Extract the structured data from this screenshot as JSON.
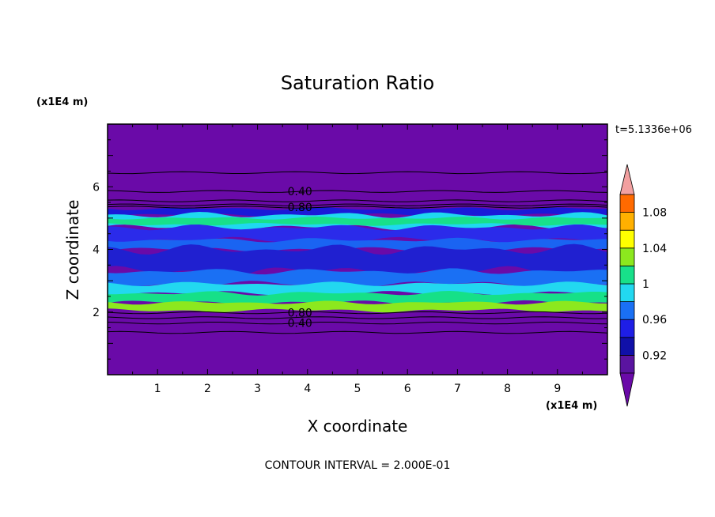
{
  "chart_data": {
    "type": "heatmap",
    "title": "Saturation Ratio",
    "xlabel": "X coordinate",
    "ylabel": "Z coordinate",
    "x_unit": "(x1E4 m)",
    "y_unit": "(x1E4 m)",
    "time_label": "t=5.1336e+06",
    "footer": "CONTOUR INTERVAL = 2.000E-01",
    "xlim": [
      0,
      10
    ],
    "ylim": [
      0,
      8
    ],
    "x_ticks": [
      1,
      2,
      3,
      4,
      5,
      6,
      7,
      8,
      9
    ],
    "y_ticks": [
      2,
      4,
      6
    ],
    "x_tick_labels": [
      "1",
      "2",
      "3",
      "4",
      "5",
      "6",
      "7",
      "8",
      "9"
    ],
    "y_tick_labels": [
      "2",
      "4",
      "6"
    ],
    "contour_lines": [
      {
        "label": "0.40",
        "z": 5.85,
        "label_x": 3.5
      },
      {
        "label": "0.80",
        "z": 5.35,
        "label_x": 3.5
      },
      {
        "label": "0.80",
        "z": 1.98,
        "label_x": 3.5
      },
      {
        "label": "0.40",
        "z": 1.65,
        "label_x": 3.5
      }
    ],
    "extra_contour_z": [
      6.45,
      5.55,
      5.42,
      1.82,
      1.35
    ],
    "bands": [
      {
        "z0": 5.1,
        "z1": 5.3,
        "color": "#1a1ad8"
      },
      {
        "z0": 4.7,
        "z1": 5.1,
        "color": "#1fd8f0"
      },
      {
        "z0": 4.8,
        "z1": 5.0,
        "color": "#18e08a"
      },
      {
        "z0": 4.3,
        "z1": 4.7,
        "color": "#2b2bea"
      },
      {
        "z0": 4.0,
        "z1": 4.3,
        "color": "#1a64f2"
      },
      {
        "z0": 3.3,
        "z1": 4.0,
        "color": "#2020d0"
      },
      {
        "z0": 2.9,
        "z1": 3.3,
        "color": "#1a70f4"
      },
      {
        "z0": 2.6,
        "z1": 2.9,
        "color": "#22d8f0"
      },
      {
        "z0": 2.3,
        "z1": 2.6,
        "color": "#16e088"
      },
      {
        "z0": 2.05,
        "z1": 2.3,
        "color": "#8ce81e"
      }
    ],
    "colorbar": {
      "labels": [
        "1.08",
        "1.04",
        "1",
        "0.96",
        "0.92"
      ],
      "label_levels": [
        1.08,
        1.04,
        1.0,
        0.96,
        0.92
      ],
      "levels": [
        0.9,
        0.92,
        0.94,
        0.96,
        0.98,
        1.0,
        1.02,
        1.04,
        1.06,
        1.08,
        1.1
      ],
      "colors": [
        "#5a14a0",
        "#1010a8",
        "#1e1ee6",
        "#1a70f4",
        "#22d8f0",
        "#18e08a",
        "#8ce81e",
        "#ffff00",
        "#ffb000",
        "#ff6a00",
        "#ff2020"
      ],
      "over_color": "#f2a0a0",
      "under_color": "#6a0aa8"
    },
    "background_color": "#6a0aa8"
  }
}
